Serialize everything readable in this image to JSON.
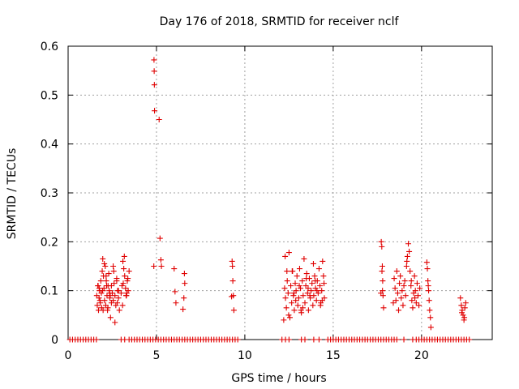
{
  "chart_data": {
    "type": "scatter",
    "title": "Day 176 of 2018, SRMTID for receiver nclf",
    "xlabel": "GPS time / hours",
    "ylabel": "SRMTID / TECUs",
    "xlim": [
      0,
      24
    ],
    "ylim": [
      0,
      0.6
    ],
    "xticks": [
      0,
      5,
      10,
      15,
      20
    ],
    "yticks": [
      0,
      0.1,
      0.2,
      0.3,
      0.4,
      0.5,
      0.6
    ],
    "grid": true,
    "marker": "plus",
    "color": "#e00000",
    "series": [
      {
        "name": "SRMTID",
        "x": [
          0.1,
          0.25,
          0.4,
          0.55,
          0.7,
          0.85,
          1.0,
          1.15,
          1.3,
          1.45,
          3.0,
          3.2,
          3.45,
          3.6,
          3.75,
          3.9,
          4.05,
          4.2,
          4.35,
          4.5,
          4.65,
          4.8,
          4.95,
          5.1,
          5.25,
          5.4,
          5.55,
          5.7,
          5.85,
          6.0,
          6.15,
          6.3,
          6.45,
          6.6,
          6.75,
          6.9,
          7.05,
          7.2,
          7.35,
          7.5,
          7.65,
          7.8,
          7.95,
          8.1,
          8.25,
          8.4,
          8.55,
          8.7,
          8.85,
          9.0,
          9.15,
          9.3,
          9.45,
          9.6,
          12.1,
          12.3,
          12.5,
          13.2,
          13.4,
          13.9,
          14.2,
          14.7,
          14.85,
          15.0,
          15.15,
          15.3,
          15.45,
          15.6,
          15.75,
          15.9,
          16.05,
          16.2,
          16.35,
          16.5,
          16.65,
          16.8,
          16.95,
          17.1,
          17.25,
          17.4,
          17.55,
          17.7,
          17.85,
          18.0,
          18.15,
          18.3,
          18.45,
          18.6,
          19.0,
          19.5,
          19.7,
          19.85,
          20.0,
          20.15,
          20.3,
          20.45,
          20.6,
          20.75,
          20.9,
          21.05,
          21.2,
          21.35,
          21.5,
          21.65,
          21.8,
          21.95,
          22.1,
          22.25,
          22.4,
          22.55,
          22.7,
          1.6,
          1.62,
          1.65,
          1.68,
          1.72,
          1.75,
          1.78,
          1.82,
          1.85,
          1.88,
          1.9,
          1.93,
          1.96,
          2.0,
          2.03,
          2.06,
          2.1,
          2.13,
          2.16,
          2.2,
          2.23,
          2.26,
          2.3,
          2.33,
          2.36,
          2.4,
          2.45,
          2.5,
          2.55,
          2.6,
          2.65,
          2.7,
          2.75,
          2.8,
          2.85,
          2.9,
          3.0,
          3.05,
          3.1,
          3.15,
          3.2,
          3.25,
          3.3,
          3.35,
          3.4,
          3.45,
          1.7,
          1.8,
          1.95,
          2.05,
          2.15,
          2.25,
          2.35,
          2.45,
          2.55,
          2.65,
          2.75,
          2.85,
          3.08,
          3.18,
          3.28,
          3.38,
          1.76,
          1.98,
          2.18,
          2.38,
          2.58,
          2.78,
          3.12,
          3.32,
          4.85,
          4.86,
          4.87,
          4.88,
          4.89,
          5.15,
          5.2,
          5.25,
          5.28,
          6.0,
          6.05,
          6.1,
          6.5,
          6.55,
          6.58,
          6.6,
          9.25,
          9.28,
          9.3,
          9.32,
          9.35,
          9.38,
          12.2,
          12.25,
          12.3,
          12.35,
          12.4,
          12.45,
          12.5,
          12.55,
          12.6,
          12.65,
          12.7,
          12.75,
          12.8,
          12.85,
          12.9,
          12.95,
          13.0,
          13.05,
          13.1,
          13.15,
          13.2,
          13.25,
          13.3,
          13.35,
          13.4,
          13.45,
          13.5,
          13.55,
          13.6,
          13.65,
          13.7,
          13.75,
          13.8,
          13.85,
          13.9,
          13.95,
          14.0,
          14.05,
          14.1,
          14.15,
          14.2,
          14.25,
          14.3,
          14.35,
          14.4,
          14.45,
          14.5,
          12.28,
          12.48,
          12.68,
          12.88,
          13.08,
          13.28,
          13.48,
          13.68,
          13.88,
          14.08,
          14.28,
          14.48,
          12.38,
          12.78,
          13.18,
          13.58,
          13.98,
          14.38,
          17.7,
          17.72,
          17.75,
          17.78,
          17.8,
          17.82,
          17.85,
          17.76,
          17.79,
          18.4,
          18.45,
          18.5,
          18.55,
          18.6,
          18.65,
          18.7,
          18.75,
          18.8,
          18.85,
          18.9,
          18.95,
          19.0,
          19.05,
          19.1,
          19.15,
          19.2,
          19.25,
          19.3,
          19.35,
          19.4,
          19.45,
          19.5,
          19.55,
          19.6,
          19.65,
          19.7,
          19.75,
          19.8,
          19.85,
          19.9,
          19.17,
          19.42,
          19.62,
          20.3,
          20.33,
          20.36,
          20.4,
          20.43,
          20.46,
          20.5,
          20.53,
          20.38,
          22.2,
          22.25,
          22.3,
          22.35,
          22.4,
          22.45,
          22.5,
          22.28,
          22.42
        ],
        "y": [
          0,
          0,
          0,
          0,
          0,
          0,
          0,
          0,
          0,
          0,
          0,
          0,
          0,
          0,
          0,
          0,
          0,
          0,
          0,
          0,
          0,
          0,
          0,
          0,
          0,
          0,
          0,
          0,
          0,
          0,
          0,
          0,
          0,
          0,
          0,
          0,
          0,
          0,
          0,
          0,
          0,
          0,
          0,
          0,
          0,
          0,
          0,
          0,
          0,
          0,
          0,
          0,
          0,
          0,
          0,
          0,
          0,
          0,
          0,
          0,
          0,
          0,
          0,
          0,
          0,
          0,
          0,
          0,
          0,
          0,
          0,
          0,
          0,
          0,
          0,
          0,
          0,
          0,
          0,
          0,
          0,
          0,
          0,
          0,
          0,
          0,
          0,
          0,
          0,
          0,
          0,
          0,
          0,
          0,
          0,
          0,
          0,
          0,
          0,
          0,
          0,
          0,
          0,
          0,
          0,
          0,
          0,
          0,
          0,
          0,
          0,
          0,
          0.09,
          0.07,
          0.11,
          0.06,
          0.085,
          0.1,
          0.075,
          0.12,
          0.095,
          0.065,
          0.14,
          0.165,
          0.13,
          0.105,
          0.08,
          0.15,
          0.07,
          0.12,
          0.09,
          0.06,
          0.11,
          0.135,
          0.1,
          0.085,
          0.045,
          0.075,
          0.095,
          0.15,
          0.115,
          0.09,
          0.07,
          0.125,
          0.1,
          0.085,
          0.06,
          0.095,
          0.11,
          0.16,
          0.145,
          0.13,
          0.105,
          0.09,
          0.12,
          0.1,
          0.14,
          0.11,
          0.08,
          0.1,
          0.155,
          0.13,
          0.065,
          0.095,
          0.11,
          0.08,
          0.035,
          0.12,
          0.1,
          0.07,
          0.17,
          0.09,
          0.125,
          0.105,
          0.06,
          0.11,
          0.09,
          0.14,
          0.075,
          0.115,
          0.095,
          0.15,
          0.572,
          0.549,
          0.521,
          0.468,
          0.45,
          0.207,
          0.163,
          0.15,
          0.145,
          0.098,
          0.075,
          0.062,
          0.085,
          0.135,
          0.115,
          0.088,
          0.16,
          0.15,
          0.12,
          0.09,
          0.06,
          0.04,
          0.105,
          0.085,
          0.065,
          0.12,
          0.095,
          0.178,
          0.045,
          0.11,
          0.075,
          0.14,
          0.09,
          0.06,
          0.115,
          0.1,
          0.13,
          0.07,
          0.085,
          0.145,
          0.105,
          0.055,
          0.12,
          0.09,
          0.165,
          0.075,
          0.11,
          0.135,
          0.095,
          0.06,
          0.125,
          0.085,
          0.1,
          0.115,
          0.07,
          0.09,
          0.13,
          0.105,
          0.08,
          0.12,
          0.095,
          0.145,
          0.11,
          0.075,
          0.1,
          0.16,
          0.13,
          0.085,
          0.17,
          0.05,
          0.14,
          0.08,
          0.11,
          0.065,
          0.125,
          0.09,
          0.155,
          0.1,
          0.07,
          0.115,
          0.14,
          0.095,
          0.06,
          0.105,
          0.12,
          0.08,
          0.095,
          0.2,
          0.19,
          0.15,
          0.12,
          0.09,
          0.065,
          0.14,
          0.1,
          0.075,
          0.125,
          0.105,
          0.08,
          0.14,
          0.095,
          0.06,
          0.115,
          0.13,
          0.085,
          0.1,
          0.07,
          0.11,
          0.12,
          0.09,
          0.15,
          0.17,
          0.196,
          0.18,
          0.14,
          0.11,
          0.08,
          0.065,
          0.095,
          0.13,
          0.1,
          0.075,
          0.115,
          0.09,
          0.07,
          0.105,
          0.16,
          0.12,
          0.085,
          0.158,
          0.145,
          0.12,
          0.1,
          0.08,
          0.06,
          0.045,
          0.025,
          0.11,
          0.085,
          0.07,
          0.06,
          0.05,
          0.04,
          0.065,
          0.075,
          0.055,
          0.045
        ]
      }
    ]
  }
}
